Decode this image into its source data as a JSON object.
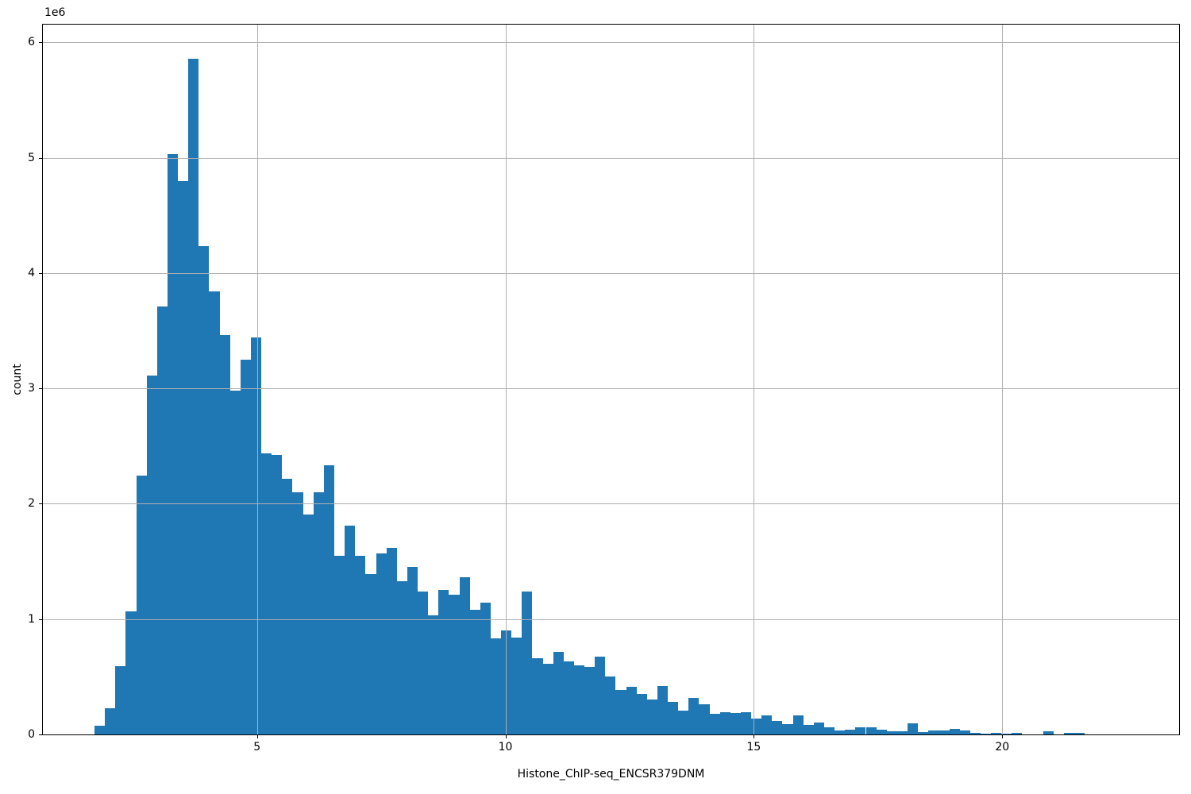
{
  "figure": {
    "background": "#ffffff",
    "spine_color": "#000000",
    "text_color": "#000000"
  },
  "chart_data": {
    "type": "bar",
    "subtype": "histogram",
    "title": "",
    "xlabel": "Histone_ChIP-seq_ENCSR379DNM",
    "ylabel": "count",
    "y_offset_label": "1e6",
    "bar_color": "#1f77b4",
    "grid": true,
    "grid_color": "#b0b0b0",
    "grid_above_bars": true,
    "legend": "none",
    "xlim": [
      0.69,
      23.56
    ],
    "ylim": [
      0,
      6153000
    ],
    "xticks": [
      5,
      10,
      15,
      20
    ],
    "xtick_labels": [
      "5",
      "10",
      "15",
      "20"
    ],
    "yticks": [
      0,
      1000000,
      2000000,
      3000000,
      4000000,
      5000000,
      6000000
    ],
    "ytick_labels": [
      "0",
      "1",
      "2",
      "3",
      "4",
      "5",
      "6"
    ],
    "bin_start": 1.73,
    "bin_width": 0.2098,
    "counts": [
      74000,
      225000,
      590000,
      1065000,
      2245000,
      3110000,
      3710000,
      5030000,
      4800000,
      5860000,
      4230000,
      3840000,
      3460000,
      2980000,
      3250000,
      3440000,
      2435000,
      2420000,
      2215000,
      2100000,
      1910000,
      2100000,
      2330000,
      1550000,
      1810000,
      1550000,
      1390000,
      1570000,
      1615000,
      1330000,
      1455000,
      1240000,
      1030000,
      1255000,
      1210000,
      1360000,
      1080000,
      1140000,
      835000,
      900000,
      840000,
      1240000,
      660000,
      610000,
      715000,
      630000,
      600000,
      585000,
      675000,
      505000,
      385000,
      410000,
      350000,
      305000,
      420000,
      280000,
      205000,
      315000,
      265000,
      180000,
      195000,
      185000,
      195000,
      140000,
      165000,
      115000,
      90000,
      165000,
      85000,
      103000,
      62000,
      34000,
      39000,
      62000,
      62000,
      39000,
      27000,
      30000,
      96000,
      19000,
      34000,
      34000,
      50000,
      34000,
      11000,
      10000,
      16000,
      8000,
      16000,
      0,
      0,
      25000,
      0,
      16000,
      16000,
      0,
      0,
      0,
      0,
      0
    ]
  }
}
